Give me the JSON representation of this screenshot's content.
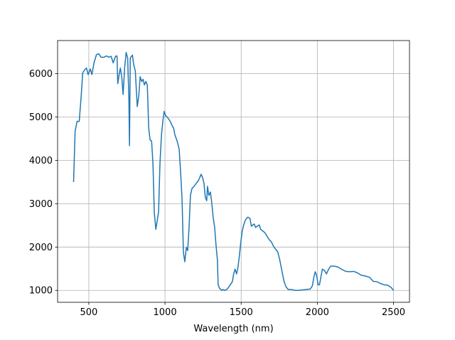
{
  "chart_data": {
    "type": "line",
    "xlabel": "Wavelength (nm)",
    "color": "#1f77b4",
    "grid": true,
    "xlim": [
      295,
      2605
    ],
    "ylim": [
      725,
      6765
    ],
    "xticks": [
      500,
      1000,
      1500,
      2000,
      2500
    ],
    "yticks": [
      1000,
      2000,
      3000,
      4000,
      5000,
      6000
    ],
    "x": [
      400,
      410,
      423,
      437,
      450,
      460,
      475,
      485,
      495,
      510,
      520,
      535,
      550,
      565,
      580,
      600,
      615,
      633,
      647,
      660,
      675,
      685,
      690,
      700,
      707,
      716,
      725,
      735,
      745,
      755,
      763,
      767,
      772,
      786,
      795,
      805,
      818,
      828,
      837,
      847,
      856,
      865,
      874,
      884,
      893,
      902,
      912,
      921,
      930,
      940,
      949,
      958,
      967,
      977,
      986,
      995,
      1005,
      1019,
      1033,
      1047,
      1056,
      1065,
      1079,
      1093,
      1102,
      1112,
      1121,
      1130,
      1140,
      1149,
      1158,
      1167,
      1177,
      1191,
      1205,
      1219,
      1228,
      1237,
      1247,
      1256,
      1265,
      1274,
      1279,
      1288,
      1298,
      1307,
      1316,
      1326,
      1335,
      1344,
      1349,
      1358,
      1372,
      1381,
      1395,
      1409,
      1423,
      1442,
      1451,
      1460,
      1470,
      1479,
      1488,
      1498,
      1507,
      1516,
      1526,
      1535,
      1544,
      1558,
      1567,
      1577,
      1586,
      1595,
      1605,
      1619,
      1628,
      1642,
      1656,
      1670,
      1684,
      1698,
      1712,
      1726,
      1740,
      1753,
      1767,
      1781,
      1795,
      1809,
      1833,
      1851,
      1879,
      1926,
      1953,
      1967,
      1977,
      1986,
      1995,
      2005,
      2014,
      2023,
      2033,
      2047,
      2060,
      2074,
      2088,
      2112,
      2135,
      2158,
      2186,
      2214,
      2237,
      2260,
      2288,
      2316,
      2344,
      2367,
      2391,
      2414,
      2437,
      2460,
      2484,
      2500
    ],
    "values": [
      3500,
      4670,
      4900,
      4900,
      5490,
      6020,
      6100,
      6130,
      5980,
      6110,
      5980,
      6260,
      6440,
      6460,
      6380,
      6380,
      6410,
      6380,
      6400,
      6250,
      6400,
      6410,
      5770,
      6000,
      6130,
      5930,
      5520,
      6130,
      6490,
      6360,
      5410,
      4340,
      6360,
      6430,
      6200,
      6070,
      5240,
      5490,
      5930,
      5820,
      5870,
      5740,
      5820,
      5740,
      4750,
      4470,
      4450,
      3930,
      2780,
      2410,
      2610,
      2810,
      3930,
      4590,
      4910,
      5130,
      5030,
      4980,
      4910,
      4800,
      4750,
      4590,
      4450,
      4260,
      3760,
      3110,
      1870,
      1660,
      1990,
      1920,
      2450,
      3190,
      3350,
      3400,
      3470,
      3530,
      3600,
      3680,
      3600,
      3470,
      3140,
      3070,
      3400,
      3190,
      3270,
      3020,
      2690,
      2450,
      2040,
      1710,
      1130,
      1050,
      1000,
      1020,
      1000,
      1030,
      1100,
      1200,
      1380,
      1490,
      1380,
      1530,
      1790,
      2120,
      2370,
      2500,
      2610,
      2660,
      2690,
      2660,
      2480,
      2510,
      2530,
      2450,
      2480,
      2510,
      2410,
      2370,
      2330,
      2250,
      2170,
      2120,
      2020,
      1950,
      1890,
      1710,
      1460,
      1210,
      1080,
      1020,
      1020,
      1000,
      1000,
      1020,
      1030,
      1100,
      1300,
      1430,
      1350,
      1130,
      1130,
      1300,
      1490,
      1460,
      1380,
      1490,
      1560,
      1560,
      1540,
      1490,
      1440,
      1430,
      1440,
      1410,
      1350,
      1330,
      1300,
      1210,
      1200,
      1160,
      1130,
      1120,
      1070,
      1000
    ]
  }
}
